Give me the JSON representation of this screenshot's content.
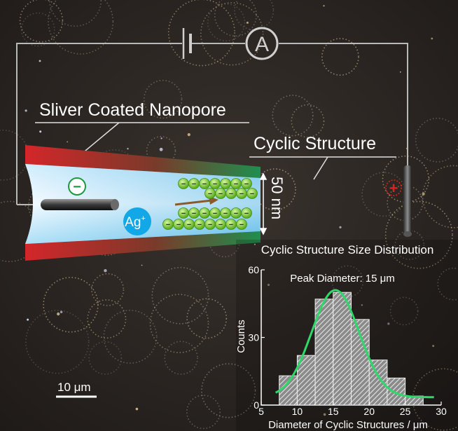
{
  "labels": {
    "nanopore": "Sliver Coated Nanopore",
    "cyclic": "Cyclic Structure",
    "ammeter": "A",
    "gap": "50 nm",
    "ion": "Ag",
    "ion_sup": "+",
    "minus": "−",
    "plus": "+",
    "scalebar": "10 μm"
  },
  "inset": {
    "title": "Cyclic Structure Size Distribution",
    "annotation": "Peak Diameter: 15 μm"
  },
  "chart_data": {
    "type": "bar",
    "title": "Cyclic Structure Size Distribution",
    "xlabel": "Diameter of Cyclic Structures / μm",
    "ylabel": "Counts",
    "xlim": [
      5,
      30
    ],
    "ylim": [
      0,
      60
    ],
    "xticks": [
      5,
      10,
      15,
      20,
      25,
      30
    ],
    "yticks": [
      0,
      30,
      60
    ],
    "bin_edges": [
      7.5,
      10,
      12.5,
      15,
      17.5,
      20,
      22.5,
      25,
      27.5
    ],
    "values": [
      13,
      22,
      47,
      50,
      38,
      20,
      12,
      4
    ],
    "fit_curve": {
      "type": "gaussian",
      "peak_x": 15.3,
      "peak_y": 51,
      "sigma": 3.3,
      "baseline": 3.5,
      "color": "#2fd86a"
    },
    "bar_color": "#c8c8c8",
    "grid": false
  },
  "colors": {
    "wire": "#b9b9b9",
    "pore_outer": "#d12a2a",
    "pore_inner": "#2a9d5c",
    "channel": "#6cc6ee",
    "particle": "#8ed63a",
    "ion": "#12a7e6",
    "plus_electrode": "#e0201c"
  }
}
